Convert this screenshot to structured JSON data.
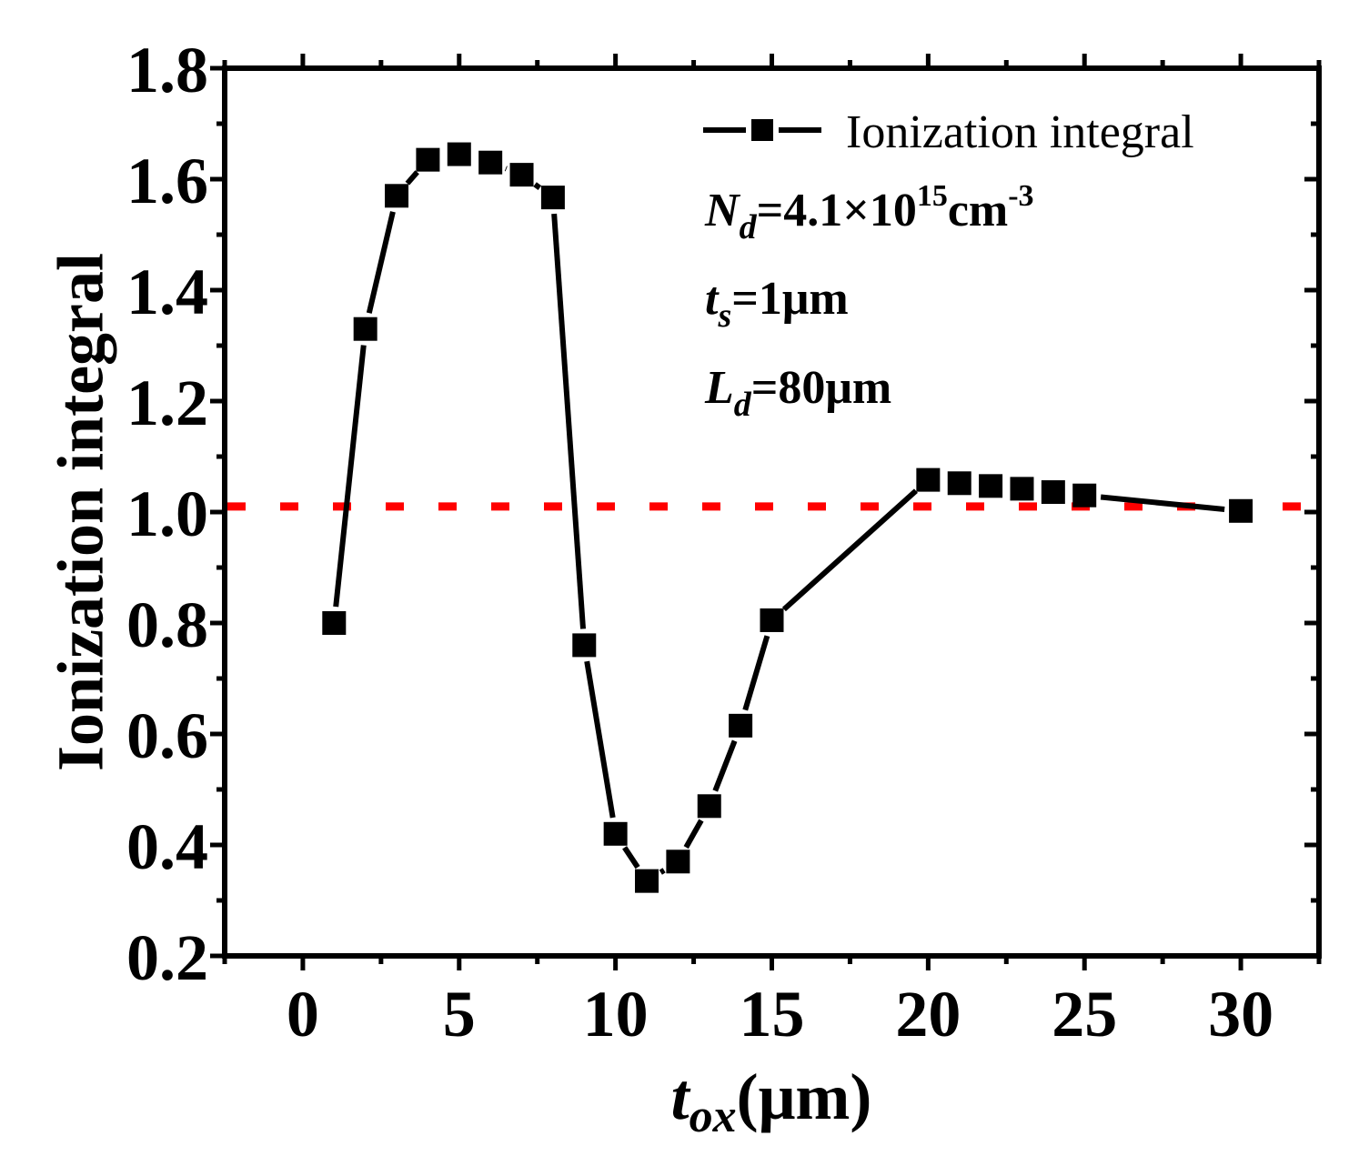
{
  "chart_data": {
    "type": "line",
    "ylabel": "Ionization integral",
    "xlabel": {
      "main": "t",
      "sub": "ox",
      "unit": "(μm)"
    },
    "xlim": [
      -2.5,
      32.5
    ],
    "ylim": [
      0.2,
      1.8
    ],
    "xticks": [
      0,
      5,
      10,
      15,
      20,
      25,
      30
    ],
    "xtick_labels": [
      "0",
      "5",
      "10",
      "15",
      "20",
      "25",
      "30"
    ],
    "yticks": [
      0.2,
      0.4,
      0.6,
      0.8,
      1.0,
      1.2,
      1.4,
      1.6,
      1.8
    ],
    "ytick_labels": [
      "0.2",
      "0.4",
      "0.6",
      "0.8",
      "1.0",
      "1.2",
      "1.4",
      "1.6",
      "1.8"
    ],
    "series": [
      {
        "name": "Ionization integral",
        "color": "#000000",
        "marker": "square",
        "x": [
          1,
          2,
          3,
          4,
          5,
          6,
          7,
          8,
          9,
          10,
          11,
          12,
          13,
          14,
          15,
          20,
          21,
          22,
          23,
          24,
          25,
          30
        ],
        "y": [
          0.8,
          1.33,
          1.57,
          1.635,
          1.645,
          1.63,
          1.608,
          1.567,
          0.76,
          0.42,
          0.335,
          0.37,
          0.47,
          0.615,
          0.805,
          1.058,
          1.052,
          1.047,
          1.042,
          1.036,
          1.03,
          1.002
        ]
      }
    ],
    "reference_line": {
      "y": 1.01,
      "color": "#ff0000",
      "style": "dotted"
    },
    "legend": {
      "position": "top-right",
      "entries": [
        "Ionization integral"
      ]
    },
    "annotations": [
      {
        "parts": [
          {
            "t": "N",
            "style": "italic"
          },
          {
            "t": "d",
            "style": "italic-sub"
          },
          {
            "t": "=4.1×10",
            "style": "normal"
          },
          {
            "t": "15",
            "style": "sup"
          },
          {
            "t": "cm",
            "style": "normal"
          },
          {
            "t": "-3",
            "style": "sup"
          }
        ]
      },
      {
        "parts": [
          {
            "t": "t",
            "style": "italic"
          },
          {
            "t": "s",
            "style": "italic-sub"
          },
          {
            "t": "=1μm",
            "style": "normal"
          }
        ]
      },
      {
        "parts": [
          {
            "t": "L",
            "style": "italic"
          },
          {
            "t": "d",
            "style": "italic-sub"
          },
          {
            "t": "=80μm",
            "style": "normal"
          }
        ]
      }
    ]
  }
}
